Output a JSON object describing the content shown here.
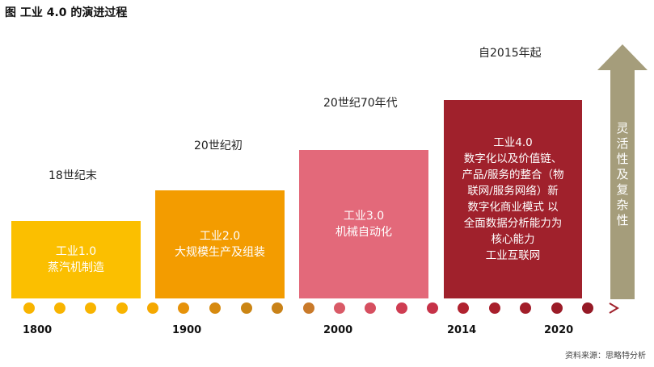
{
  "title": "图 工业 4.0 的演进过程",
  "eras": [
    {
      "period": "18世纪末",
      "lines": [
        "工业1.0",
        "蒸汽机制造"
      ],
      "color": "#fbbf00"
    },
    {
      "period": "20世纪初",
      "lines": [
        "工业2.0",
        "大规模生产及组装"
      ],
      "color": "#f39c00"
    },
    {
      "period": "20世纪70年代",
      "lines": [
        "工业3.0",
        "机械自动化"
      ],
      "color": "#e3697a"
    },
    {
      "period": "自2015年起",
      "lines": [
        "工业4.0",
        "数字化以及价值链、",
        "产品/服务的整合（物",
        "联网/服务网络）新",
        "数字化商业模式  以",
        "全面数据分析能力为",
        "核心能力",
        "工业互联网"
      ],
      "color": "#a0212c"
    }
  ],
  "years": [
    "1800",
    "1900",
    "2000",
    "2014",
    "2020"
  ],
  "arrow": {
    "chars": [
      "灵",
      "活",
      "性",
      "及",
      "复",
      "杂",
      "性"
    ],
    "color": "#a59d7b"
  },
  "source": "资料来源：思略特分析"
}
